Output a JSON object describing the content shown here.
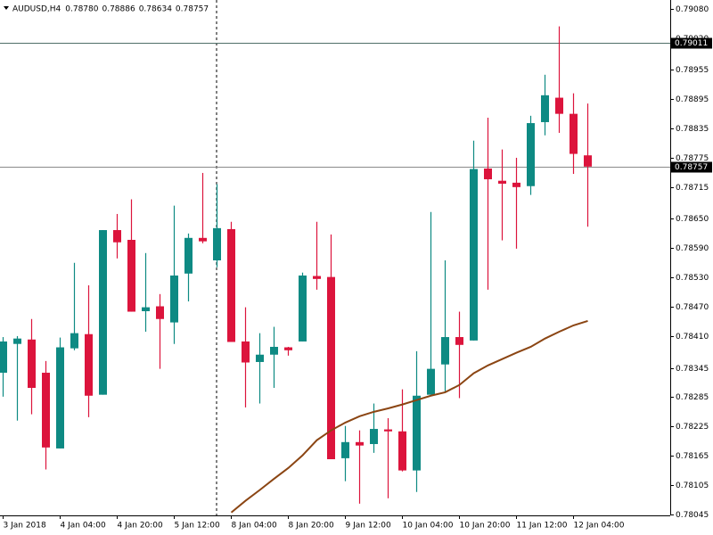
{
  "chart_data": {
    "type": "candlestick",
    "title": "AUDUSD,H4",
    "header_values": [
      "0.78780",
      "0.78886",
      "0.78634",
      "0.78757"
    ],
    "categories": [
      "3 Jan 2018",
      null,
      null,
      null,
      "4 Jan 04:00",
      null,
      null,
      null,
      "4 Jan 20:00",
      null,
      null,
      null,
      "5 Jan 12:00",
      null,
      null,
      null,
      "8 Jan 04:00",
      null,
      null,
      null,
      "8 Jan 20:00",
      null,
      null,
      null,
      "9 Jan 12:00",
      null,
      null,
      null,
      "10 Jan 04:00",
      null,
      null,
      null,
      "10 Jan 20:00",
      null,
      null,
      null,
      "11 Jan 12:00",
      null,
      null,
      null,
      "12 Jan 04:00",
      null
    ],
    "open": [
      0.78335,
      0.78394,
      0.78403,
      0.78335,
      0.7818,
      0.78385,
      0.78414,
      0.7829,
      0.78627,
      0.78607,
      0.78461,
      0.78471,
      0.78438,
      0.78538,
      0.78611,
      0.78565,
      0.78629,
      0.78399,
      0.78357,
      0.78372,
      0.78387,
      0.78399,
      0.78533,
      0.78531,
      0.7816,
      0.78193,
      0.78189,
      0.78219,
      0.78215,
      0.78135,
      0.7829,
      0.78352,
      0.78408,
      0.78401,
      0.78753,
      0.78728,
      0.78724,
      0.78717,
      0.78848,
      0.78898,
      0.78865,
      0.7878
    ],
    "high": [
      0.78408,
      0.7841,
      0.78445,
      0.78359,
      0.78407,
      0.7856,
      0.78514,
      0.78627,
      0.7866,
      0.7869,
      0.7858,
      0.78496,
      0.78677,
      0.7862,
      0.78744,
      0.78721,
      0.78644,
      0.78469,
      0.78416,
      0.78429,
      0.78388,
      0.7854,
      0.78644,
      0.78618,
      0.78226,
      0.78217,
      0.78272,
      0.78242,
      0.78301,
      0.78379,
      0.78664,
      0.78565,
      0.7846,
      0.7881,
      0.78857,
      0.78792,
      0.78775,
      0.78861,
      0.78945,
      0.79044,
      0.78907,
      0.78886
    ],
    "low": [
      0.78286,
      0.78237,
      0.7825,
      0.78137,
      0.7818,
      0.78381,
      0.78244,
      0.7829,
      0.78569,
      0.7846,
      0.78419,
      0.78343,
      0.78394,
      0.78481,
      0.786,
      0.78551,
      0.78398,
      0.78264,
      0.78272,
      0.78304,
      0.7837,
      0.78399,
      0.78505,
      0.78158,
      0.78113,
      0.78067,
      0.78171,
      0.78078,
      0.78133,
      0.78091,
      0.7829,
      0.78295,
      0.78283,
      0.78401,
      0.78505,
      0.78606,
      0.78589,
      0.78699,
      0.78821,
      0.78826,
      0.78742,
      0.78634
    ],
    "close": [
      0.78399,
      0.78405,
      0.78304,
      0.78182,
      0.78387,
      0.78416,
      0.78288,
      0.78627,
      0.78602,
      0.7846,
      0.78469,
      0.78445,
      0.78534,
      0.78611,
      0.78604,
      0.78631,
      0.78398,
      0.78356,
      0.78372,
      0.78388,
      0.78381,
      0.78534,
      0.78527,
      0.78158,
      0.78193,
      0.78186,
      0.7822,
      0.78215,
      0.78135,
      0.78288,
      0.78343,
      0.78408,
      0.78392,
      0.78752,
      0.78731,
      0.78722,
      0.78715,
      0.78846,
      0.78903,
      0.78865,
      0.78783,
      0.78757
    ],
    "up_color": "#0e8a83",
    "down_color": "#dc143c",
    "moving_average": {
      "color": "#8b4513",
      "values": [
        null,
        null,
        null,
        null,
        null,
        null,
        null,
        null,
        null,
        null,
        null,
        null,
        null,
        null,
        null,
        null,
        0.78049,
        0.78073,
        0.78095,
        0.78118,
        0.7814,
        0.78166,
        0.78197,
        0.78217,
        0.78233,
        0.78246,
        0.78255,
        0.78262,
        0.7827,
        0.78279,
        0.78288,
        0.78295,
        0.7831,
        0.78334,
        0.7835,
        0.78363,
        0.78376,
        0.78388,
        0.78405,
        0.78419,
        0.78432,
        0.78441
      ]
    },
    "price_lines": [
      {
        "value": 0.79011,
        "label": "0.79011",
        "color": "#4f6f68"
      },
      {
        "value": 0.78757,
        "label": "0.78757",
        "color": "#8a8a8a"
      }
    ],
    "ylim": [
      0.78043,
      0.79098
    ],
    "yticks": [
      {
        "value": 0.7908,
        "label": "0.79080"
      },
      {
        "value": 0.7902,
        "label": "0.79020"
      },
      {
        "value": 0.78955,
        "label": "0.78955"
      },
      {
        "value": 0.78895,
        "label": "0.78895"
      },
      {
        "value": 0.78835,
        "label": "0.78835"
      },
      {
        "value": 0.78775,
        "label": "0.78775"
      },
      {
        "value": 0.78715,
        "label": "0.78715"
      },
      {
        "value": 0.7865,
        "label": "0.78650"
      },
      {
        "value": 0.7859,
        "label": "0.78590"
      },
      {
        "value": 0.7853,
        "label": "0.78530"
      },
      {
        "value": 0.7847,
        "label": "0.78470"
      },
      {
        "value": 0.7841,
        "label": "0.78410"
      },
      {
        "value": 0.78345,
        "label": "0.78345"
      },
      {
        "value": 0.78285,
        "label": "0.78285"
      },
      {
        "value": 0.78225,
        "label": "0.78225"
      },
      {
        "value": 0.78165,
        "label": "0.78165"
      },
      {
        "value": 0.78105,
        "label": "0.78105"
      },
      {
        "value": 0.78045,
        "label": "0.78045"
      }
    ]
  }
}
